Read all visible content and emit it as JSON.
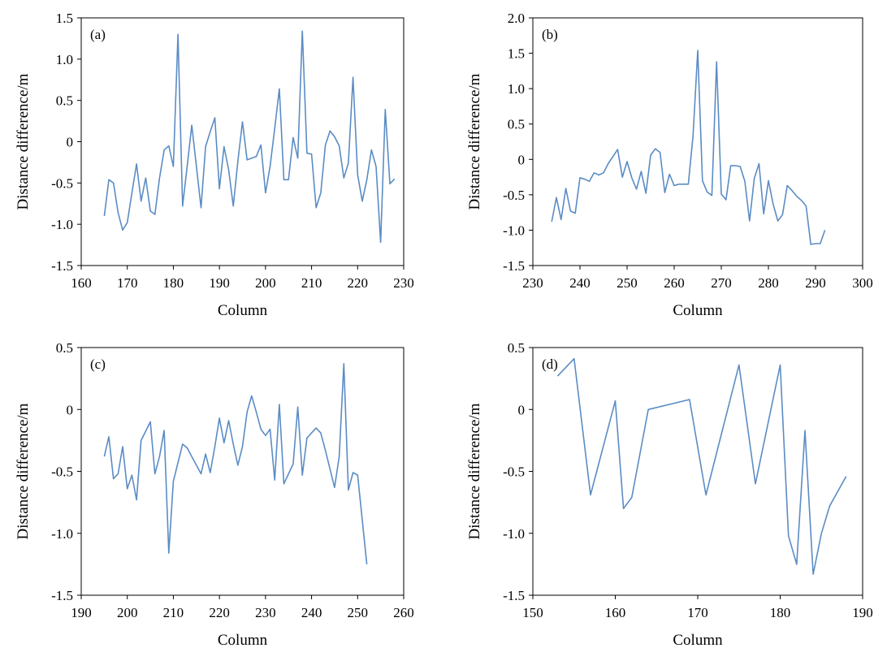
{
  "chart_data": [
    {
      "type": "line",
      "panel_label": "(a)",
      "xlabel": "Column",
      "ylabel": "Distance difference/m",
      "xlim": [
        160,
        230
      ],
      "ylim": [
        -1.5,
        1.5
      ],
      "xticks": [
        160,
        170,
        180,
        190,
        200,
        210,
        220,
        230
      ],
      "yticks": [
        1.5,
        1.0,
        0.5,
        0,
        -0.5,
        -1.0,
        -1.5
      ],
      "xtick_labels": [
        "160",
        "170",
        "180",
        "190",
        "200",
        "210",
        "220",
        "230"
      ],
      "ytick_labels": [
        "1.5",
        "1.0",
        "0.5",
        "0",
        "-0.5",
        "-1.0",
        "-1.5"
      ],
      "color": "#5b8cc4",
      "x": [
        165,
        166,
        167,
        168,
        169,
        170,
        171,
        172,
        173,
        174,
        175,
        176,
        177,
        178,
        179,
        180,
        181,
        182,
        183,
        184,
        185,
        186,
        187,
        188,
        189,
        190,
        191,
        192,
        193,
        194,
        195,
        196,
        197,
        198,
        199,
        200,
        201,
        202,
        203,
        204,
        205,
        206,
        207,
        208,
        209,
        210,
        211,
        212,
        213,
        214,
        215,
        216,
        217,
        218,
        219,
        220,
        221,
        222,
        223,
        224,
        225,
        226,
        227,
        228
      ],
      "y": [
        -0.9,
        -0.46,
        -0.5,
        -0.86,
        -1.07,
        -0.98,
        -0.62,
        -0.27,
        -0.72,
        -0.44,
        -0.84,
        -0.88,
        -0.44,
        -0.1,
        -0.05,
        -0.3,
        1.3,
        -0.78,
        -0.3,
        0.2,
        -0.3,
        -0.8,
        -0.06,
        0.12,
        0.29,
        -0.57,
        -0.06,
        -0.34,
        -0.78,
        -0.24,
        0.24,
        -0.22,
        -0.2,
        -0.18,
        -0.04,
        -0.62,
        -0.3,
        0.16,
        0.64,
        -0.46,
        -0.46,
        0.05,
        -0.2,
        1.34,
        -0.14,
        -0.15,
        -0.8,
        -0.62,
        -0.04,
        0.13,
        0.06,
        -0.05,
        -0.44,
        -0.26,
        0.78,
        -0.4,
        -0.72,
        -0.46,
        -0.1,
        -0.3,
        -1.22,
        0.39,
        -0.51,
        -0.45
      ]
    },
    {
      "type": "line",
      "panel_label": "(b)",
      "xlabel": "Column",
      "ylabel": "Distance difference/m",
      "xlim": [
        230,
        300
      ],
      "ylim": [
        -1.5,
        2.0
      ],
      "xticks": [
        230,
        240,
        250,
        260,
        270,
        280,
        290,
        300
      ],
      "yticks": [
        2.0,
        1.5,
        1.0,
        0.5,
        0,
        -0.5,
        -1.0,
        -1.5
      ],
      "xtick_labels": [
        "230",
        "240",
        "250",
        "260",
        "270",
        "280",
        "290",
        "300"
      ],
      "ytick_labels": [
        "2.0",
        "1.5",
        "1.0",
        "0.5",
        "0",
        "-0.5",
        "-1.0",
        "-1.5"
      ],
      "color": "#5b8cc4",
      "x": [
        234,
        235,
        236,
        237,
        238,
        239,
        240,
        241,
        242,
        243,
        244,
        245,
        246,
        247,
        248,
        249,
        250,
        251,
        252,
        253,
        254,
        255,
        256,
        257,
        258,
        259,
        260,
        261,
        262,
        263,
        264,
        265,
        266,
        267,
        268,
        269,
        270,
        271,
        272,
        273,
        274,
        275,
        276,
        277,
        278,
        279,
        280,
        281,
        282,
        283,
        284,
        285,
        286,
        287,
        288,
        289,
        290,
        291,
        292
      ],
      "y": [
        -0.88,
        -0.54,
        -0.85,
        -0.41,
        -0.73,
        -0.76,
        -0.26,
        -0.28,
        -0.31,
        -0.19,
        -0.22,
        -0.19,
        -0.06,
        0.04,
        0.14,
        -0.25,
        -0.03,
        -0.26,
        -0.42,
        -0.17,
        -0.48,
        0.06,
        0.15,
        0.1,
        -0.47,
        -0.21,
        -0.37,
        -0.35,
        -0.35,
        -0.35,
        0.33,
        1.54,
        -0.3,
        -0.46,
        -0.51,
        1.38,
        -0.49,
        -0.57,
        -0.09,
        -0.09,
        -0.1,
        -0.31,
        -0.87,
        -0.27,
        -0.06,
        -0.77,
        -0.3,
        -0.63,
        -0.87,
        -0.78,
        -0.37,
        -0.44,
        -0.52,
        -0.58,
        -0.66,
        -1.2,
        -1.19,
        -1.19,
        -1.0
      ]
    },
    {
      "type": "line",
      "panel_label": "(c)",
      "xlabel": "Column",
      "ylabel": "Distance difference/m",
      "xlim": [
        190,
        260
      ],
      "ylim": [
        -1.5,
        0.5
      ],
      "xticks": [
        190,
        200,
        210,
        220,
        230,
        240,
        250,
        260
      ],
      "yticks": [
        0.5,
        0,
        -0.5,
        -1.0,
        -1.5
      ],
      "xtick_labels": [
        "190",
        "200",
        "210",
        "220",
        "230",
        "240",
        "250",
        "260"
      ],
      "ytick_labels": [
        "0.5",
        "0",
        "-0.5",
        "-1.0",
        "-1.5"
      ],
      "color": "#5b8cc4",
      "x": [
        195,
        196,
        197,
        198,
        199,
        200,
        201,
        202,
        203,
        205,
        206,
        207,
        208,
        209,
        210,
        212,
        213,
        214,
        216,
        217,
        218,
        219,
        220,
        221,
        222,
        223,
        224,
        225,
        226,
        227,
        228,
        229,
        230,
        231,
        232,
        233,
        234,
        236,
        237,
        238,
        239,
        241,
        242,
        243,
        245,
        246,
        247,
        248,
        249,
        250,
        252
      ],
      "y": [
        -0.38,
        -0.22,
        -0.56,
        -0.52,
        -0.3,
        -0.64,
        -0.53,
        -0.73,
        -0.25,
        -0.1,
        -0.52,
        -0.38,
        -0.17,
        -1.16,
        -0.58,
        -0.28,
        -0.31,
        -0.38,
        -0.52,
        -0.36,
        -0.51,
        -0.3,
        -0.07,
        -0.27,
        -0.09,
        -0.28,
        -0.45,
        -0.3,
        -0.02,
        0.11,
        -0.02,
        -0.16,
        -0.21,
        -0.16,
        -0.57,
        0.04,
        -0.6,
        -0.44,
        0.02,
        -0.53,
        -0.23,
        -0.15,
        -0.19,
        -0.33,
        -0.63,
        -0.38,
        0.37,
        -0.65,
        -0.51,
        -0.53,
        -1.25
      ]
    },
    {
      "type": "line",
      "panel_label": "(d)",
      "xlabel": "Column",
      "ylabel": "Distance difference/m",
      "xlim": [
        150,
        190
      ],
      "ylim": [
        -1.5,
        0.5
      ],
      "xticks": [
        150,
        160,
        170,
        180,
        190
      ],
      "yticks": [
        0.5,
        0,
        -0.5,
        -1.0,
        -1.5
      ],
      "xtick_labels": [
        "150",
        "160",
        "170",
        "180",
        "190"
      ],
      "ytick_labels": [
        "0.5",
        "0",
        "-0.5",
        "-1.0",
        "-1.5"
      ],
      "color": "#5b8cc4",
      "x": [
        153,
        155,
        157,
        160,
        161,
        162,
        164,
        169,
        171,
        175,
        177,
        180,
        181,
        182,
        183,
        184,
        185,
        186,
        188
      ],
      "y": [
        0.27,
        0.41,
        -0.69,
        0.07,
        -0.8,
        -0.71,
        0.0,
        0.08,
        -0.69,
        0.36,
        -0.6,
        0.36,
        -1.02,
        -1.25,
        -0.17,
        -1.33,
        -1.0,
        -0.78,
        -0.54
      ]
    }
  ]
}
